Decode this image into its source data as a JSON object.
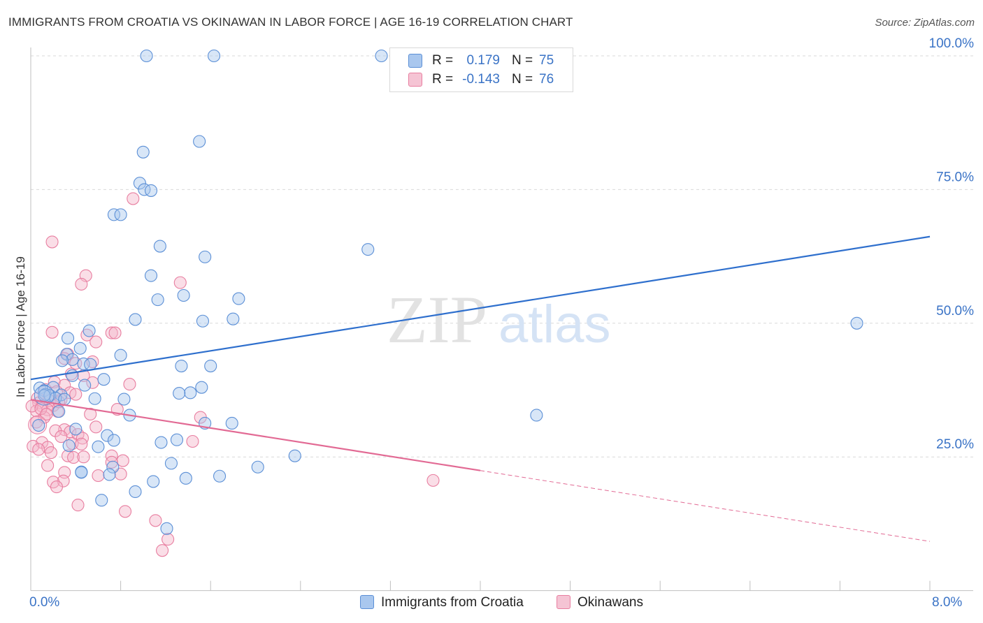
{
  "header": {
    "title": "IMMIGRANTS FROM CROATIA VS OKINAWAN IN LABOR FORCE | AGE 16-19 CORRELATION CHART",
    "source": "Source: ZipAtlas.com"
  },
  "watermark": {
    "zip": "ZIP",
    "atlas": "atlas"
  },
  "colors": {
    "blue_fill": "#a9c7ee",
    "blue_stroke": "#5b8fd6",
    "blue_line": "#2e6fcd",
    "pink_fill": "#f5b5ca",
    "pink_stroke": "#e87ea0",
    "pink_line": "#e26a94",
    "axis_text": "#3a73c6",
    "grid": "#d9d9d9"
  },
  "legend": {
    "rows": [
      {
        "series": "blue",
        "r_label": "R =",
        "r_value": "0.179",
        "n_label": "N =",
        "n_value": "75"
      },
      {
        "series": "pink",
        "r_label": "R =",
        "r_value": "-0.143",
        "n_label": "N =",
        "n_value": "76"
      }
    ]
  },
  "bottom_legend": {
    "blue_label": "Immigrants from Croatia",
    "pink_label": "Okinawans"
  },
  "chart_data": {
    "type": "scatter",
    "title": "IMMIGRANTS FROM CROATIA VS OKINAWAN IN LABOR FORCE | AGE 16-19 CORRELATION CHART",
    "xlabel": "",
    "ylabel": "In Labor Force | Age 16-19",
    "xlim": [
      0,
      8
    ],
    "ylim": [
      0,
      102
    ],
    "x_tick_labels": {
      "left": "0.0%",
      "right": "8.0%"
    },
    "y_ticks": [
      {
        "value": 25,
        "label": "25.0%"
      },
      {
        "value": 50,
        "label": "50.0%"
      },
      {
        "value": 75,
        "label": "75.0%"
      },
      {
        "value": 100,
        "label": "100.0%"
      }
    ],
    "x_minor_ticks": [
      0,
      0.8,
      1.6,
      2.4,
      3.2,
      4.0,
      4.8,
      5.6,
      6.4,
      7.2,
      8.0
    ],
    "series": [
      {
        "name": "Immigrants from Croatia",
        "color": "blue",
        "R": 0.179,
        "N": 75,
        "trend": {
          "x": [
            0,
            8
          ],
          "y": [
            39.5,
            66.2
          ],
          "dashed_from": null
        },
        "points": [
          [
            1.03,
            100
          ],
          [
            1.63,
            100
          ],
          [
            3.12,
            100
          ],
          [
            1.5,
            84
          ],
          [
            1.0,
            82
          ],
          [
            0.97,
            76.2
          ],
          [
            1.01,
            75
          ],
          [
            1.07,
            74.8
          ],
          [
            0.74,
            70.3
          ],
          [
            0.8,
            70.3
          ],
          [
            1.15,
            64.4
          ],
          [
            3.0,
            63.8
          ],
          [
            1.55,
            62.4
          ],
          [
            1.07,
            58.9
          ],
          [
            1.13,
            54.4
          ],
          [
            1.36,
            55.2
          ],
          [
            1.85,
            54.6
          ],
          [
            1.8,
            50.8
          ],
          [
            0.93,
            50.7
          ],
          [
            1.53,
            50.4
          ],
          [
            7.35,
            50
          ],
          [
            0.52,
            48.6
          ],
          [
            0.33,
            47.2
          ],
          [
            0.44,
            45.3
          ],
          [
            0.32,
            44.2
          ],
          [
            0.8,
            44
          ],
          [
            0.37,
            43.2
          ],
          [
            0.28,
            43
          ],
          [
            0.47,
            42.4
          ],
          [
            0.53,
            42.3
          ],
          [
            1.34,
            42
          ],
          [
            1.6,
            42
          ],
          [
            0.37,
            40.2
          ],
          [
            0.65,
            39.5
          ],
          [
            0.08,
            37.9
          ],
          [
            0.12,
            37.4
          ],
          [
            0.2,
            38
          ],
          [
            0.48,
            38.4
          ],
          [
            0.27,
            36.6
          ],
          [
            0.13,
            36.7
          ],
          [
            0.17,
            36.5
          ],
          [
            0.22,
            36
          ],
          [
            0.3,
            35.8
          ],
          [
            1.52,
            38
          ],
          [
            1.42,
            37
          ],
          [
            1.32,
            36.9
          ],
          [
            0.57,
            35.9
          ],
          [
            0.83,
            35.8
          ],
          [
            0.25,
            33.5
          ],
          [
            0.88,
            32.8
          ],
          [
            4.5,
            32.8
          ],
          [
            1.55,
            31.3
          ],
          [
            1.79,
            31.3
          ],
          [
            0.07,
            30.9
          ],
          [
            0.4,
            30.2
          ],
          [
            0.68,
            29
          ],
          [
            0.74,
            28.1
          ],
          [
            1.16,
            27.7
          ],
          [
            1.3,
            28.2
          ],
          [
            0.34,
            27.1
          ],
          [
            0.6,
            26.9
          ],
          [
            2.35,
            25.2
          ],
          [
            0.45,
            22.2
          ],
          [
            0.73,
            23.1
          ],
          [
            0.7,
            21.7
          ],
          [
            1.25,
            23.8
          ],
          [
            2.02,
            23.1
          ],
          [
            1.68,
            21.4
          ],
          [
            1.38,
            21
          ],
          [
            1.09,
            20.4
          ],
          [
            0.45,
            22.1
          ],
          [
            0.63,
            16.9
          ],
          [
            1.21,
            11.6
          ],
          [
            0.93,
            18.5
          ],
          [
            0.12,
            36.5
          ]
        ]
      },
      {
        "name": "Okinawans",
        "color": "pink",
        "R": -0.143,
        "N": 76,
        "trend": {
          "x": [
            0,
            8
          ],
          "y": [
            35.7,
            9.2
          ],
          "dashed_from": 4.0
        },
        "points": [
          [
            0.19,
            48.3
          ],
          [
            0.19,
            65.2
          ],
          [
            0.91,
            73.3
          ],
          [
            0.49,
            58.9
          ],
          [
            0.45,
            57.3
          ],
          [
            1.33,
            57.6
          ],
          [
            0.72,
            48.2
          ],
          [
            0.75,
            48.2
          ],
          [
            0.5,
            47.8
          ],
          [
            0.58,
            46.5
          ],
          [
            0.33,
            44.2
          ],
          [
            0.3,
            43.4
          ],
          [
            0.55,
            42.8
          ],
          [
            0.4,
            42.5
          ],
          [
            0.36,
            40.5
          ],
          [
            0.47,
            40.2
          ],
          [
            0.21,
            39
          ],
          [
            0.55,
            38.9
          ],
          [
            0.88,
            38.6
          ],
          [
            0.3,
            38.4
          ],
          [
            0.13,
            37.6
          ],
          [
            0.23,
            37.2
          ],
          [
            0.35,
            37
          ],
          [
            0.06,
            36
          ],
          [
            0.17,
            35.5
          ],
          [
            0.27,
            35.7
          ],
          [
            0.07,
            35.1
          ],
          [
            0.1,
            34.5
          ],
          [
            0.2,
            34.6
          ],
          [
            0.15,
            33.8
          ],
          [
            0.05,
            33.6
          ],
          [
            0.24,
            33.5
          ],
          [
            0.77,
            33.9
          ],
          [
            0.53,
            33
          ],
          [
            1.51,
            32.4
          ],
          [
            0.12,
            32.4
          ],
          [
            0.05,
            31.5
          ],
          [
            0.58,
            30.6
          ],
          [
            0.3,
            30.1
          ],
          [
            0.22,
            29.9
          ],
          [
            0.35,
            29.7
          ],
          [
            0.42,
            29.2
          ],
          [
            0.27,
            28.8
          ],
          [
            0.46,
            28.5
          ],
          [
            0.1,
            27.7
          ],
          [
            0.15,
            26.8
          ],
          [
            0.37,
            27.5
          ],
          [
            0.45,
            27.4
          ],
          [
            1.44,
            27.9
          ],
          [
            0.02,
            27
          ],
          [
            0.07,
            26.4
          ],
          [
            0.18,
            25.8
          ],
          [
            0.33,
            25.2
          ],
          [
            0.38,
            24.9
          ],
          [
            0.47,
            25
          ],
          [
            0.72,
            25.2
          ],
          [
            0.82,
            24.3
          ],
          [
            0.15,
            23.4
          ],
          [
            0.3,
            22.1
          ],
          [
            0.8,
            21.8
          ],
          [
            0.29,
            20.5
          ],
          [
            0.2,
            20.3
          ],
          [
            0.23,
            19.4
          ],
          [
            3.58,
            20.6
          ],
          [
            0.84,
            14.8
          ],
          [
            0.42,
            16
          ],
          [
            1.11,
            13.1
          ],
          [
            1.22,
            9.6
          ],
          [
            1.17,
            7.5
          ],
          [
            0.72,
            24
          ],
          [
            0.6,
            21.5
          ],
          [
            0.4,
            36.7
          ],
          [
            0.25,
            35.3
          ],
          [
            0.01,
            34.5
          ],
          [
            0.09,
            34
          ],
          [
            0.14,
            33
          ]
        ]
      }
    ]
  }
}
